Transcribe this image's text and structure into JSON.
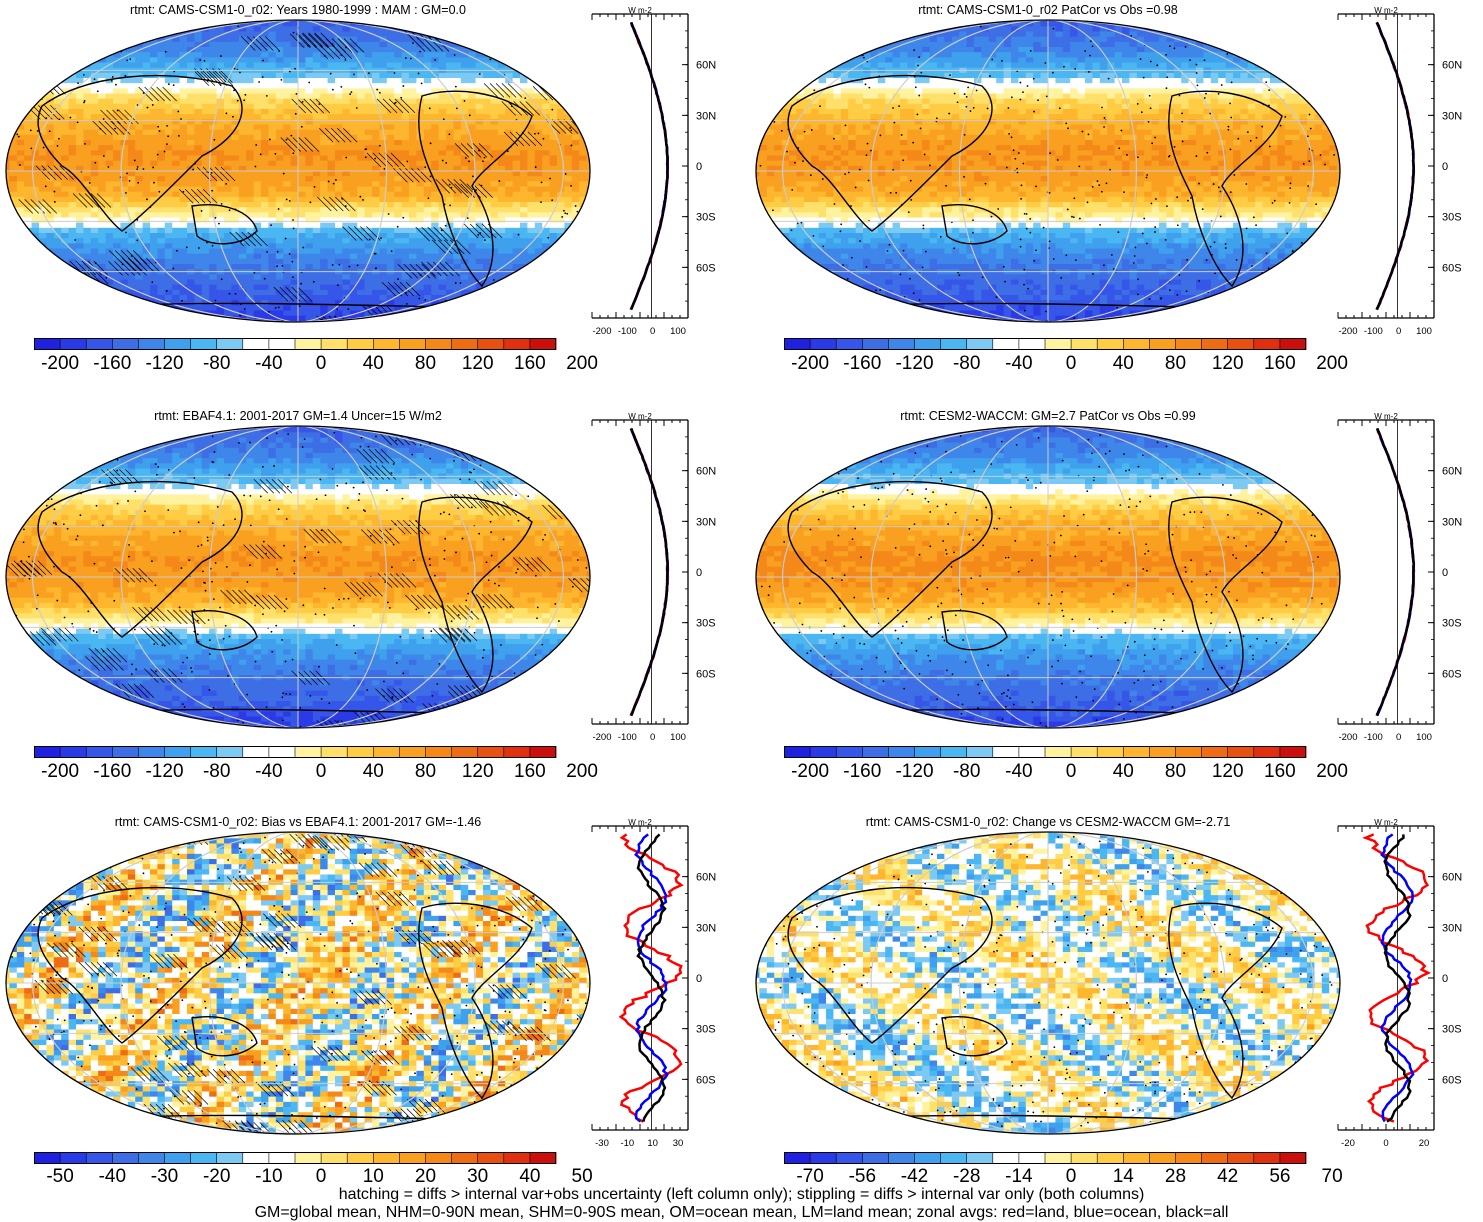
{
  "panels": [
    {
      "title": "rtmt: CAMS-CSM1-0_r02: Years 1980-1999 : MAM : GM=0.0",
      "kind": "clim",
      "hatch": true,
      "colorbar": {
        "labels": [
          "-200",
          "-160",
          "-120",
          "-80",
          "-40",
          "0",
          "40",
          "80",
          "120",
          "160",
          "200"
        ]
      },
      "zonal": {
        "xticks": [
          "-200",
          "-100",
          "0",
          "100"
        ],
        "unit": "W m-2"
      }
    },
    {
      "title": "rtmt: CAMS-CSM1-0_r02 PatCor vs Obs =0.98",
      "kind": "clim",
      "hatch": false,
      "colorbar": {
        "labels": [
          "-200",
          "-160",
          "-120",
          "-80",
          "-40",
          "0",
          "40",
          "80",
          "120",
          "160",
          "200"
        ]
      },
      "zonal": {
        "xticks": [
          "-200",
          "-100",
          "0",
          "100"
        ],
        "unit": "W m-2"
      }
    },
    {
      "title": "rtmt: EBAF4.1: 2001-2017 GM=1.4 Uncer=15 W/m2",
      "kind": "clim",
      "hatch": true,
      "colorbar": {
        "labels": [
          "-200",
          "-160",
          "-120",
          "-80",
          "-40",
          "0",
          "40",
          "80",
          "120",
          "160",
          "200"
        ]
      },
      "zonal": {
        "xticks": [
          "-200",
          "-100",
          "0",
          "100"
        ],
        "unit": "W m-2"
      }
    },
    {
      "title": "rtmt: CESM2-WACCM: GM=2.7 PatCor vs Obs =0.99",
      "kind": "clim",
      "hatch": false,
      "colorbar": {
        "labels": [
          "-200",
          "-160",
          "-120",
          "-80",
          "-40",
          "0",
          "40",
          "80",
          "120",
          "160",
          "200"
        ]
      },
      "zonal": {
        "xticks": [
          "-200",
          "-100",
          "0",
          "100"
        ],
        "unit": "W m-2"
      }
    },
    {
      "title": "rtmt: CAMS-CSM1-0_r02: Bias vs EBAF4.1: 2001-2017 GM=-1.46",
      "kind": "bias",
      "hatch": true,
      "colorbar": {
        "labels": [
          "-50",
          "-40",
          "-30",
          "-20",
          "-10",
          "0",
          "10",
          "20",
          "30",
          "40",
          "50"
        ]
      },
      "zonal": {
        "xticks": [
          "-30",
          "-10",
          "10",
          "30"
        ],
        "unit": "W m-2"
      }
    },
    {
      "title": "rtmt: CAMS-CSM1-0_r02: Change vs CESM2-WACCM GM=-2.71",
      "kind": "change",
      "hatch": false,
      "colorbar": {
        "labels": [
          "-70",
          "-56",
          "-42",
          "-28",
          "-14",
          "0",
          "14",
          "28",
          "42",
          "56",
          "70"
        ]
      },
      "zonal": {
        "xticks": [
          "-20",
          "0",
          "20"
        ],
        "unit": "W m-2"
      }
    }
  ],
  "lat_labels": [
    "60N",
    "30N",
    "0",
    "30S",
    "60S"
  ],
  "palette": [
    "#2020e0",
    "#2a3ae6",
    "#3556e8",
    "#3d6ee6",
    "#3f86ea",
    "#3fa0ee",
    "#4ab6f2",
    "#7ccaf4",
    "#ffffff",
    "#ffffff",
    "#fff3a0",
    "#ffe06a",
    "#ffcc44",
    "#fdb62e",
    "#f9a020",
    "#f48818",
    "#ee6c14",
    "#e85012",
    "#e03010",
    "#cc0e0c"
  ],
  "zonal_colors": {
    "land": "#ff0000",
    "ocean": "#0000ff",
    "all": "#000000"
  },
  "footer": {
    "line1": "hatching = diffs > internal var+obs uncertainty (left column only); stippling = diffs > internal var only (both columns)",
    "line2": "GM=global mean, NHM=0-90N mean, SHM=0-90S mean, OM=ocean mean, LM=land mean; zonal avgs: red=land, blue=ocean, black=all"
  }
}
